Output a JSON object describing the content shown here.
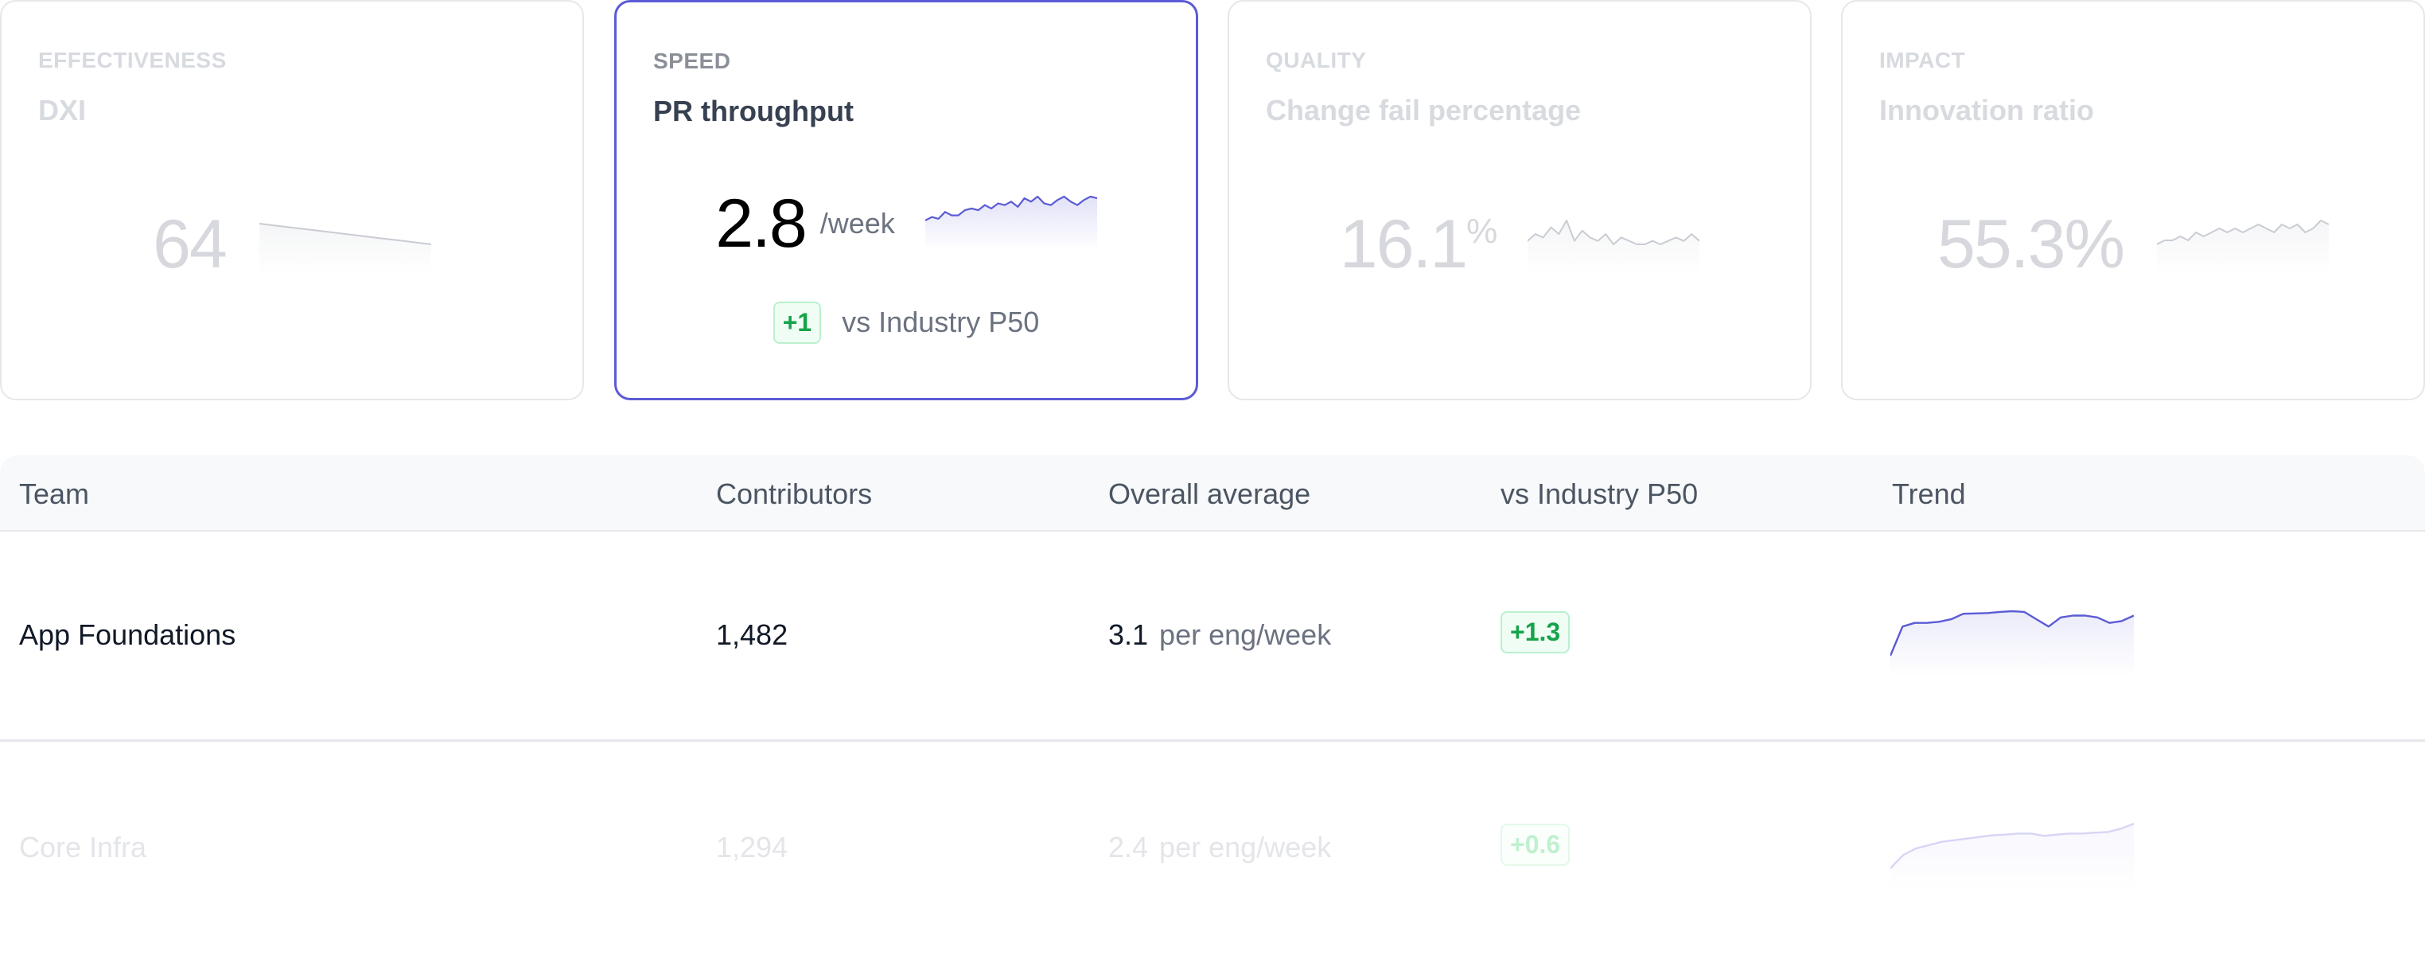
{
  "cards": [
    {
      "category": "EFFECTIVENESS",
      "title": "DXI",
      "value": "64",
      "unit": "",
      "suffix": "",
      "state": "dimmed",
      "sparkline": [
        15,
        14.9,
        14.8,
        14.7,
        14.6,
        14.5,
        14.4,
        14.3,
        14.2,
        14.1,
        14.0
      ]
    },
    {
      "category": "SPEED",
      "title": "PR throughput",
      "value": "2.8",
      "unit": "/week",
      "suffix": "",
      "state": "selected",
      "sparkline": [
        4,
        6,
        5,
        9,
        7,
        7,
        10,
        11,
        10,
        13,
        11,
        14,
        13,
        15,
        12,
        17,
        15,
        18,
        14,
        13,
        16,
        18,
        15,
        13,
        16,
        18,
        17
      ],
      "comparison": {
        "delta": "+1",
        "label": "vs Industry P50"
      }
    },
    {
      "category": "QUALITY",
      "title": "Change fail percentage",
      "value": "16.1",
      "unit": "",
      "suffix": "%",
      "state": "dimmed",
      "sparkline": [
        10,
        12,
        11,
        14,
        12,
        16,
        10,
        13,
        11,
        10,
        12,
        9,
        11,
        10,
        9,
        9,
        10,
        9,
        10,
        11,
        10,
        12,
        10
      ]
    },
    {
      "category": "IMPACT",
      "title": "Innovation ratio",
      "value": "55.3%",
      "unit": "",
      "suffix": "",
      "state": "dimmed",
      "sparkline": [
        8,
        9,
        9,
        10,
        9,
        11,
        10,
        11,
        12,
        11,
        12,
        11,
        12,
        13,
        12,
        11,
        13,
        12,
        13,
        11,
        12,
        14,
        13
      ]
    }
  ],
  "table": {
    "headers": [
      "Team",
      "Contributors",
      "Overall average",
      "vs Industry P50",
      "Trend"
    ],
    "rows": [
      {
        "team": "App Foundations",
        "contributors": "1,482",
        "average": "3.1",
        "average_unit": "per eng/week",
        "vs_p50": "+1.3",
        "state": "normal",
        "trend": [
          2,
          10,
          11,
          11,
          11.3,
          12,
          13.5,
          13.6,
          13.7,
          14,
          14.2,
          14,
          12,
          10,
          12.5,
          13,
          13,
          12.5,
          11,
          11.5,
          13
        ]
      },
      {
        "team": "Core Infra",
        "contributors": "1,294",
        "average": "2.4",
        "average_unit": "per eng/week",
        "vs_p50": "+0.6",
        "state": "dimmed",
        "trend": [
          2,
          6,
          8,
          9,
          10,
          10.5,
          11,
          11.5,
          12,
          12.2,
          12.5,
          12.5,
          11.8,
          12.2,
          12.5,
          12.5,
          12.8,
          13,
          14,
          15.5
        ]
      }
    ]
  },
  "colors": {
    "accent": "#5b5bd6",
    "positive": "#16a34a",
    "muted_line": "#c9ccd2"
  }
}
